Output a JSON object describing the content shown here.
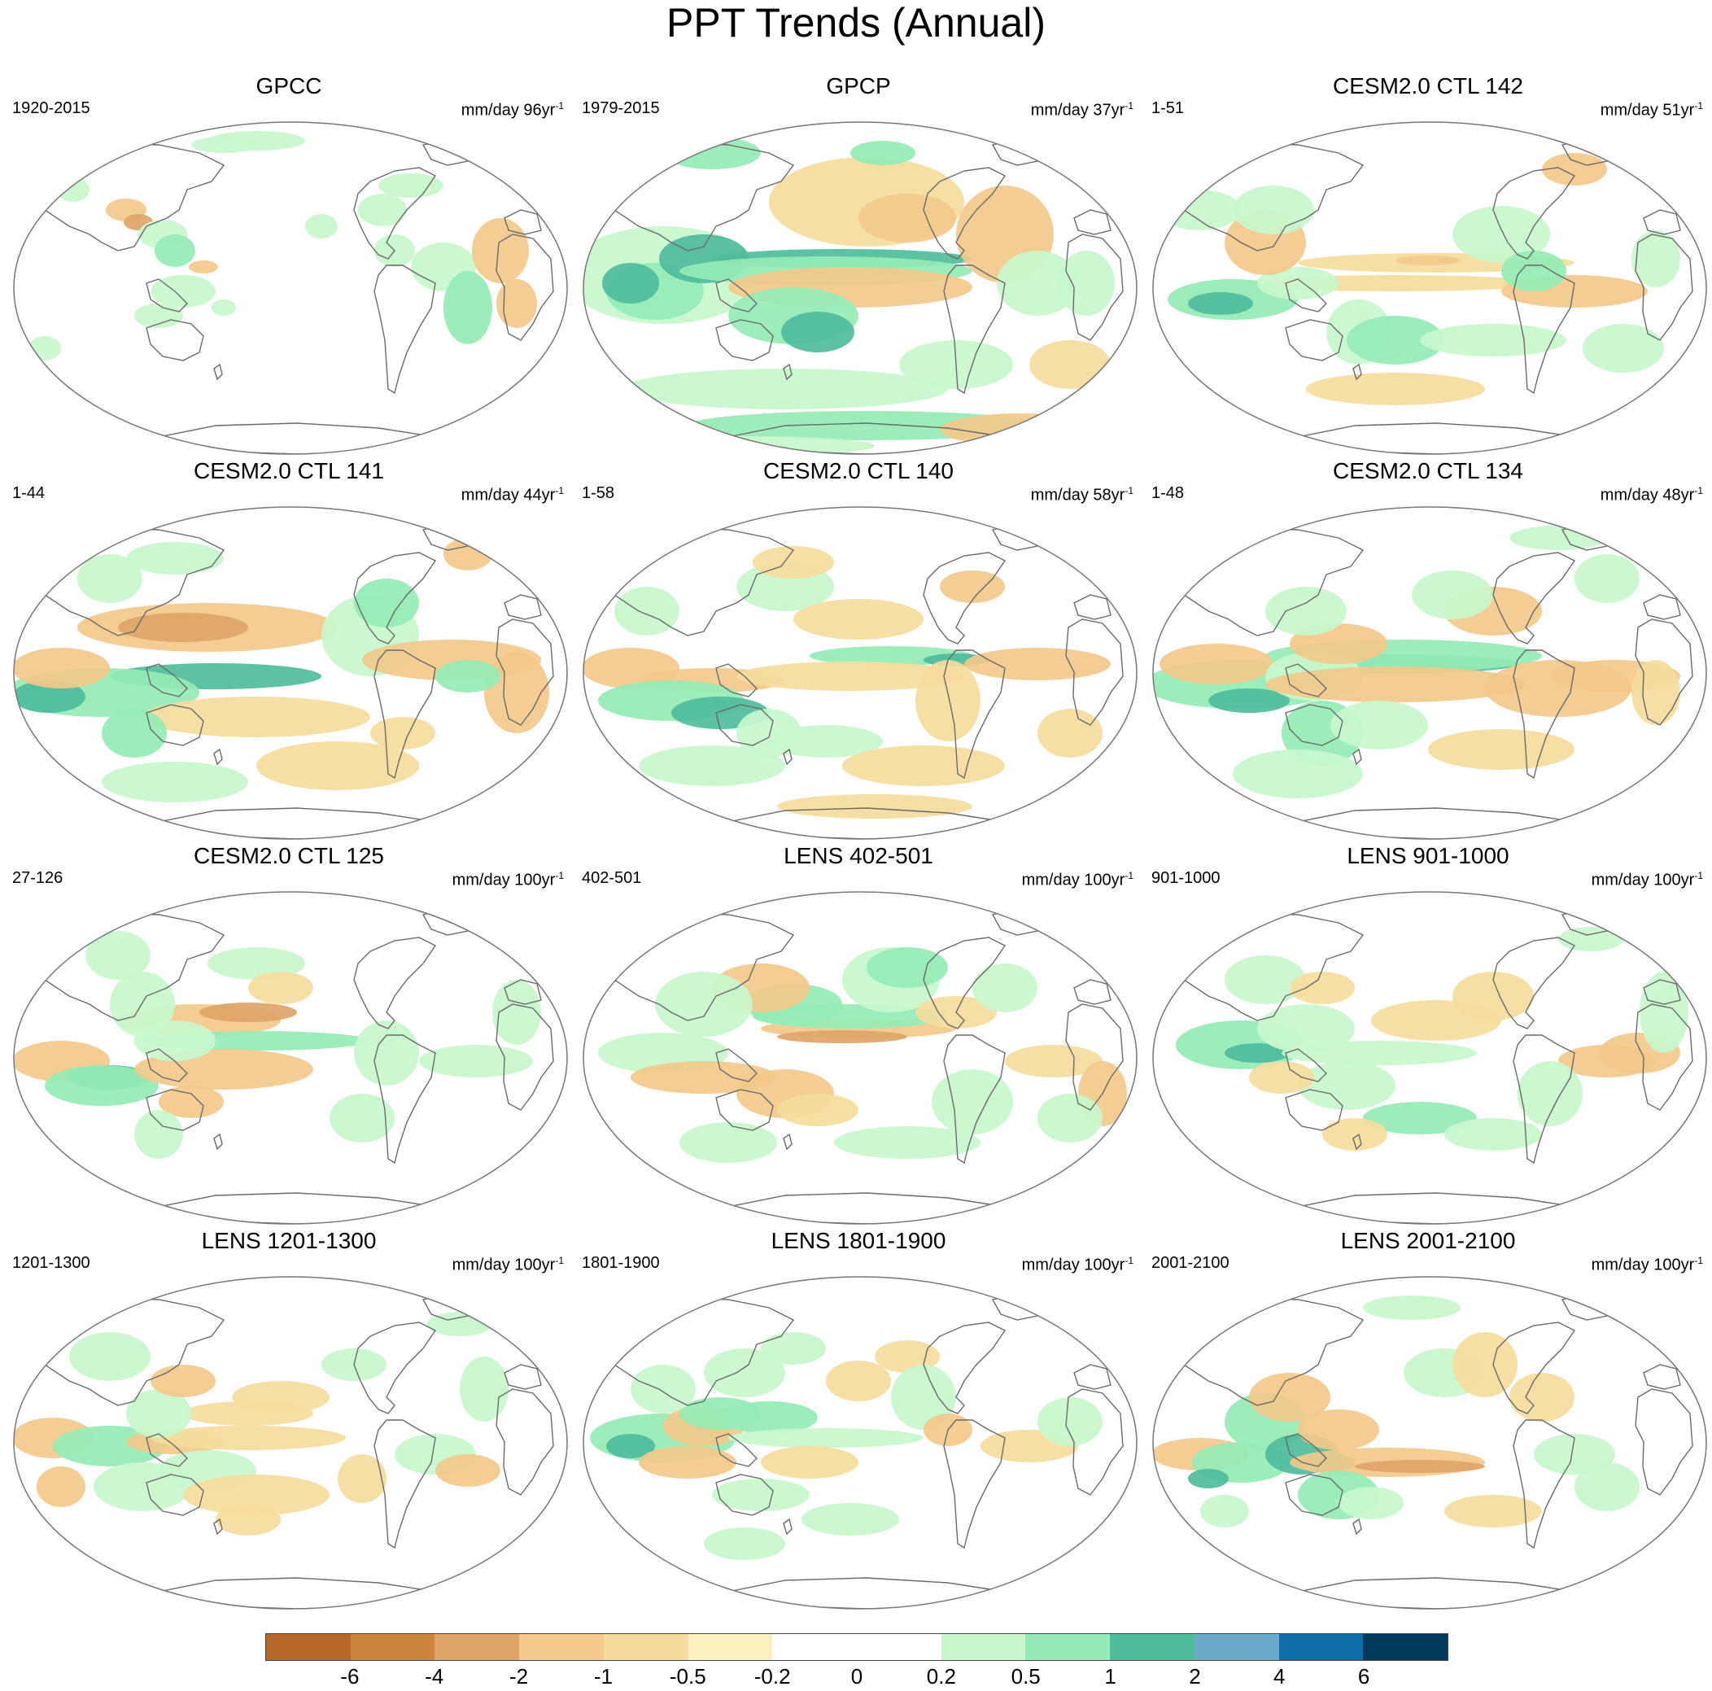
{
  "title": "PPT Trends (Annual)",
  "colors": {
    "coast": "#6a6a6a",
    "outline": "#777777",
    "palette": [
      "#b5682a",
      "#cc853f",
      "#dea567",
      "#f2c98a",
      "#f5dc9c",
      "#fcf0c0",
      "#ffffff",
      "#ffffff",
      "#c8f7cc",
      "#95ebb5",
      "#4fbc9c",
      "#6aa9c9",
      "#0f6eaa",
      "#003a5c"
    ]
  },
  "panels": [
    {
      "title": "GPCC",
      "range": "1920-2015",
      "units": "mm/day 96yr",
      "units_exp": "-1",
      "pattern": "gpcc"
    },
    {
      "title": "GPCP",
      "range": "1979-2015",
      "units": "mm/day 37yr",
      "units_exp": "-1",
      "pattern": "gpcp"
    },
    {
      "title": "CESM2.0 CTL 142",
      "range": "1-51",
      "units": "mm/day 51yr",
      "units_exp": "-1",
      "pattern": "m142"
    },
    {
      "title": "CESM2.0 CTL 141",
      "range": "1-44",
      "units": "mm/day 44yr",
      "units_exp": "-1",
      "pattern": "m141"
    },
    {
      "title": "CESM2.0 CTL 140",
      "range": "1-58",
      "units": "mm/day 58yr",
      "units_exp": "-1",
      "pattern": "m140"
    },
    {
      "title": "CESM2.0 CTL 134",
      "range": "1-48",
      "units": "mm/day 48yr",
      "units_exp": "-1",
      "pattern": "m134"
    },
    {
      "title": "CESM2.0 CTL 125",
      "range": "27-126",
      "units": "mm/day 100yr",
      "units_exp": "-1",
      "pattern": "m125"
    },
    {
      "title": "LENS 402-501",
      "range": "402-501",
      "units": "mm/day 100yr",
      "units_exp": "-1",
      "pattern": "l402"
    },
    {
      "title": "LENS 901-1000",
      "range": "901-1000",
      "units": "mm/day 100yr",
      "units_exp": "-1",
      "pattern": "l901"
    },
    {
      "title": "LENS 1201-1300",
      "range": "1201-1300",
      "units": "mm/day 100yr",
      "units_exp": "-1",
      "pattern": "l1201"
    },
    {
      "title": "LENS 1801-1900",
      "range": "1801-1900",
      "units": "mm/day 100yr",
      "units_exp": "-1",
      "pattern": "l1801"
    },
    {
      "title": "LENS 2001-2100",
      "range": "2001-2100",
      "units": "mm/day 100yr",
      "units_exp": "-1",
      "pattern": "l2001"
    }
  ],
  "colorbar": {
    "labels": [
      "-6",
      "-4",
      "-2",
      "-1",
      "-0.5",
      "-0.2",
      "0",
      "0.2",
      "0.5",
      "1",
      "2",
      "4",
      "6"
    ]
  }
}
